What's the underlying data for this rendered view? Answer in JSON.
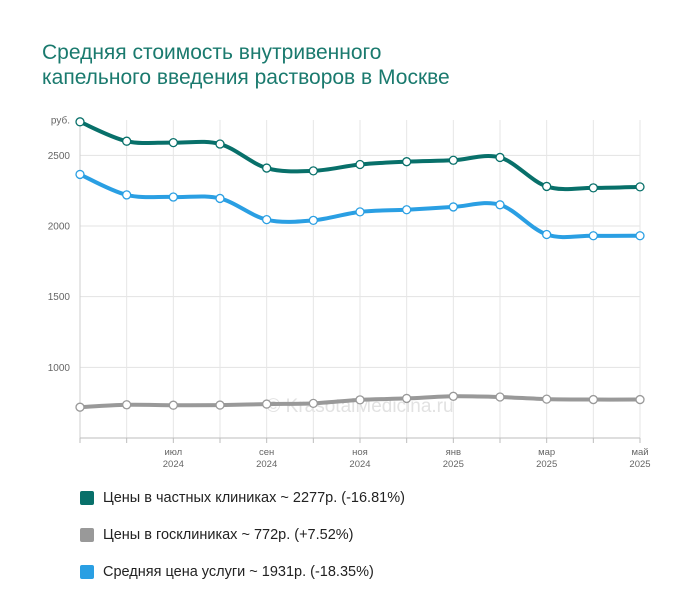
{
  "title_lines": [
    "Средняя стоимость внутривенного",
    "капельного введения растворов в Москве"
  ],
  "watermark": "© KrasotaiMedicina.ru",
  "legend": [
    {
      "label": "Цены в частных клиниках ~ 2277р. (-16.81%)",
      "color": "#08706a"
    },
    {
      "label": "Цены в госклиниках ~ 772р. (+7.52%)",
      "color": "#999999"
    },
    {
      "label": "Средняя цена услуги ~ 1931р. (-18.35%)",
      "color": "#2a9fe3"
    }
  ],
  "chart_data": {
    "type": "line",
    "ylabel": "руб.",
    "ylim": [
      500,
      2750
    ],
    "yticks": [
      1000,
      1500,
      2000,
      2500
    ],
    "grid": true,
    "x": [
      "2024-05",
      "2024-06",
      "2024-07",
      "2024-08",
      "2024-09",
      "2024-10",
      "2024-11",
      "2024-12",
      "2025-01",
      "2025-02",
      "2025-03",
      "2025-04",
      "2025-05"
    ],
    "xticks": [
      {
        "x": "2024-07",
        "line1": "июл",
        "line2": "2024"
      },
      {
        "x": "2024-09",
        "line1": "сен",
        "line2": "2024"
      },
      {
        "x": "2024-11",
        "line1": "ноя",
        "line2": "2024"
      },
      {
        "x": "2025-01",
        "line1": "янв",
        "line2": "2025"
      },
      {
        "x": "2025-03",
        "line1": "мар",
        "line2": "2025"
      },
      {
        "x": "2025-05",
        "line1": "май",
        "line2": "2025"
      }
    ],
    "series": [
      {
        "name": "Цены в частных клиниках",
        "color": "#08706a",
        "values": [
          2737,
          2600,
          2590,
          2580,
          2410,
          2390,
          2435,
          2455,
          2465,
          2485,
          2280,
          2270,
          2277
        ]
      },
      {
        "name": "Цены в госклиниках",
        "color": "#999999",
        "values": [
          718,
          735,
          732,
          733,
          740,
          745,
          770,
          780,
          795,
          790,
          775,
          772,
          772
        ]
      },
      {
        "name": "Средняя цена услуги",
        "color": "#2a9fe3",
        "values": [
          2365,
          2220,
          2205,
          2195,
          2045,
          2040,
          2100,
          2115,
          2135,
          2150,
          1940,
          1931,
          1931
        ]
      }
    ]
  }
}
